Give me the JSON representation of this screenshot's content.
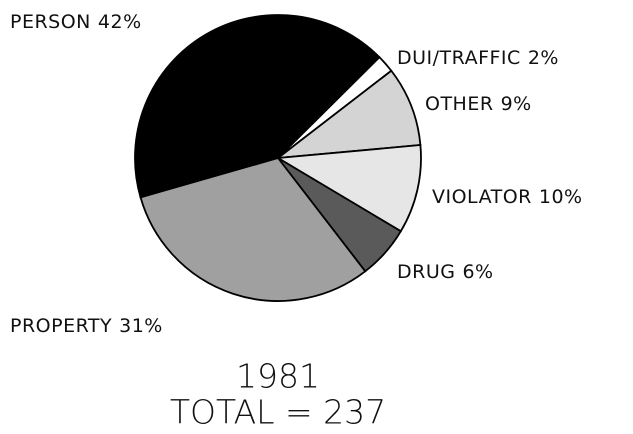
{
  "chart_data": {
    "type": "pie",
    "title": "1981",
    "subtitle": "TOTAL = 237",
    "categories": [
      "PERSON",
      "DUI/TRAFFIC",
      "OTHER",
      "VIOLATOR",
      "DRUG",
      "PROPERTY"
    ],
    "values": [
      42,
      2,
      9,
      10,
      6,
      31
    ],
    "value_labels": [
      "42%",
      "2%",
      "9%",
      "10%",
      "6%",
      "31%"
    ],
    "colors": [
      "#000000",
      "#ffffff",
      "#d4d4d4",
      "#e6e6e6",
      "#5a5a5a",
      "#a0a0a0"
    ]
  }
}
